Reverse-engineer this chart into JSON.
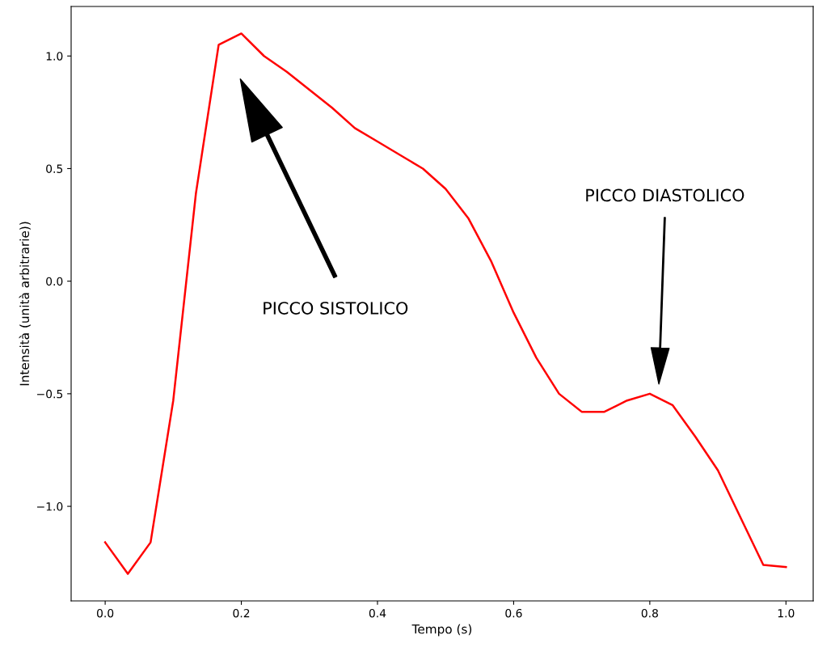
{
  "chart_data": {
    "type": "line",
    "xlabel": "Tempo (s)",
    "ylabel": "Intensità (unità arbitrarie))",
    "x": [
      0,
      0.0333,
      0.0667,
      0.1,
      0.1333,
      0.1667,
      0.2,
      0.2333,
      0.2667,
      0.3,
      0.3333,
      0.3667,
      0.4,
      0.4333,
      0.4667,
      0.5,
      0.5333,
      0.5667,
      0.6,
      0.6333,
      0.6667,
      0.7,
      0.7333,
      0.7667,
      0.8,
      0.8333,
      0.8667,
      0.9,
      0.9333,
      0.9667,
      1.0
    ],
    "series": [
      {
        "color": "#ff0000",
        "values": [
          -1.16,
          -1.3,
          -1.16,
          -0.53,
          0.39,
          1.05,
          1.1,
          1.0,
          0.93,
          0.85,
          0.77,
          0.68,
          0.62,
          0.56,
          0.5,
          0.41,
          0.28,
          0.09,
          -0.14,
          -0.34,
          -0.5,
          -0.58,
          -0.58,
          -0.53,
          -0.5,
          -0.55,
          -0.69,
          -0.84,
          -1.05,
          -1.26,
          -1.27
        ]
      }
    ],
    "xlim": [
      -0.05,
      1.04
    ],
    "ylim": [
      -1.42,
      1.22
    ],
    "xticks": [
      {
        "value": 0,
        "label": "0.0"
      },
      0.2,
      0.4,
      0.6,
      0.8,
      {
        "value": 1,
        "label": "1.0"
      }
    ],
    "yticks": [
      {
        "value": -1,
        "label": "−1.0"
      },
      -0.5,
      {
        "value": 0,
        "label": "0.0"
      },
      0.5,
      {
        "value": 1,
        "label": "1.0"
      }
    ],
    "grid": false,
    "marker": "none",
    "line_style": "solid",
    "annotations": [
      "PICCO SISTOLICO",
      "PICCO DIASTOLICO"
    ]
  }
}
